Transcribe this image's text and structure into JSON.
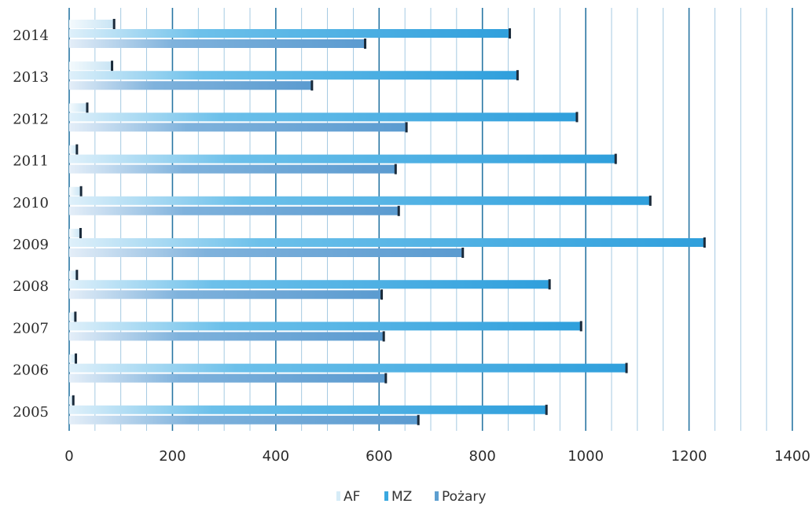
{
  "chart_data": {
    "type": "bar",
    "orientation": "horizontal",
    "categories": [
      "2014",
      "2013",
      "2012",
      "2011",
      "2010",
      "2009",
      "2008",
      "2007",
      "2006",
      "2005"
    ],
    "series": [
      {
        "name": "AF",
        "color": "#d6ecf7",
        "values": [
          87,
          83,
          35,
          15,
          23,
          22,
          15,
          12,
          13,
          8
        ]
      },
      {
        "name": "MZ",
        "color": "#3aa8e0",
        "values": [
          853,
          868,
          983,
          1058,
          1125,
          1230,
          930,
          991,
          1079,
          924
        ]
      },
      {
        "name": "Pożary",
        "color": "#5d9fd0",
        "values": [
          573,
          470,
          653,
          632,
          638,
          762,
          605,
          609,
          613,
          676
        ]
      }
    ],
    "xlim": [
      0,
      1400
    ],
    "xticks": [
      "0",
      "200",
      "400",
      "600",
      "800",
      "1000",
      "1200",
      "1400"
    ],
    "grid": true,
    "legend": "bottom"
  }
}
